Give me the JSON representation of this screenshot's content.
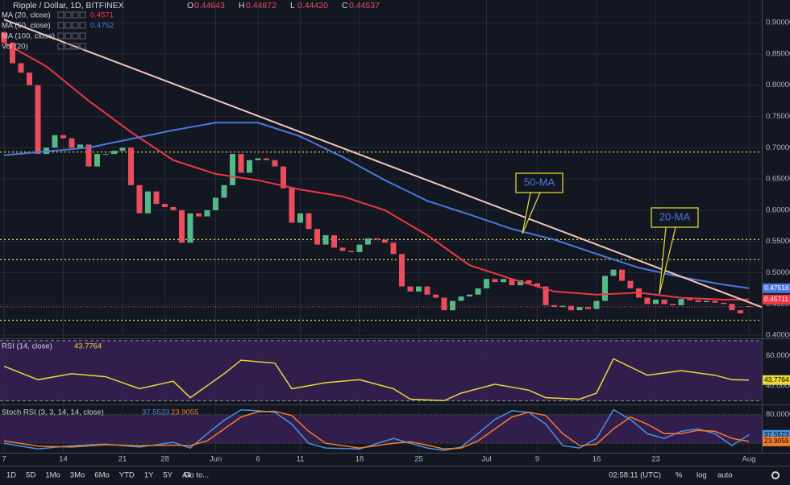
{
  "header": {
    "title": "Ripple / Dollar, 1D, BITFINEX",
    "ohlc": [
      {
        "key": "O",
        "value": "0.44643"
      },
      {
        "key": "H",
        "value": "0.44872"
      },
      {
        "key": "L",
        "value": "0.44420"
      },
      {
        "key": "C",
        "value": "0.44537"
      }
    ]
  },
  "indicators": [
    {
      "name": "MA (20, close)",
      "value": 0.4571,
      "color": "#f23645"
    },
    {
      "name": "MA (50, close)",
      "value": 0.4752,
      "color": "#4a78e0"
    },
    {
      "name": "MA (100, close)"
    },
    {
      "name": "Vol (20)"
    }
  ],
  "chart_data": [
    {
      "type": "candlestick",
      "categories": [
        "7",
        null,
        null,
        null,
        null,
        null,
        null,
        "14",
        null,
        null,
        null,
        null,
        null,
        null,
        "21",
        null,
        null,
        null,
        null,
        "28",
        null,
        null,
        null,
        null,
        null,
        "Jun",
        null,
        null,
        null,
        null,
        "6",
        null,
        null,
        null,
        null,
        "11",
        null,
        null,
        null,
        null,
        null,
        null,
        "18",
        null,
        null,
        null,
        null,
        null,
        null,
        "25",
        null,
        null,
        null,
        null,
        null,
        null,
        null,
        "Jul",
        null,
        null,
        null,
        null,
        null,
        "9",
        null,
        null,
        null,
        null,
        null,
        null,
        "16",
        null,
        null,
        null,
        null,
        null,
        null,
        "23",
        null,
        null,
        null,
        null,
        null,
        null,
        null,
        null,
        null,
        null,
        "Aug"
      ],
      "open": [
        0.885,
        0.868,
        0.835,
        0.82,
        0.8,
        0.69,
        0.7,
        0.72,
        0.715,
        0.7,
        0.705,
        0.67,
        0.69,
        0.69,
        0.695,
        0.7,
        0.64,
        0.595,
        0.63,
        0.61,
        0.605,
        0.6,
        0.548,
        0.595,
        0.59,
        0.6,
        0.62,
        0.64,
        0.69,
        0.66,
        0.68,
        0.683,
        0.68,
        0.67,
        0.635,
        0.58,
        0.595,
        0.57,
        0.545,
        0.56,
        0.54,
        0.535,
        0.533,
        0.545,
        0.555,
        0.553,
        0.548,
        0.53,
        0.478,
        0.47,
        0.478,
        0.465,
        0.46,
        0.44,
        0.455,
        0.462,
        0.465,
        0.475,
        0.49,
        0.485,
        0.49,
        0.48,
        0.488,
        0.483,
        0.478,
        0.448,
        0.445,
        0.447,
        0.44,
        0.445,
        0.442,
        0.455,
        0.495,
        0.505,
        0.487,
        0.475,
        0.46,
        0.45,
        0.457,
        0.45,
        0.448,
        0.458,
        0.456,
        0.453,
        0.455,
        0.452,
        0.45,
        0.44,
        0.44643
      ],
      "close": [
        0.868,
        0.835,
        0.82,
        0.8,
        0.69,
        0.7,
        0.72,
        0.715,
        0.7,
        0.705,
        0.67,
        0.69,
        0.69,
        0.695,
        0.7,
        0.64,
        0.595,
        0.63,
        0.61,
        0.605,
        0.6,
        0.548,
        0.595,
        0.59,
        0.6,
        0.62,
        0.64,
        0.69,
        0.66,
        0.68,
        0.683,
        0.68,
        0.67,
        0.635,
        0.58,
        0.595,
        0.57,
        0.545,
        0.56,
        0.54,
        0.535,
        0.533,
        0.545,
        0.555,
        0.553,
        0.548,
        0.53,
        0.478,
        0.47,
        0.478,
        0.465,
        0.46,
        0.44,
        0.455,
        0.462,
        0.465,
        0.475,
        0.49,
        0.485,
        0.49,
        0.48,
        0.488,
        0.483,
        0.478,
        0.448,
        0.445,
        0.447,
        0.44,
        0.445,
        0.442,
        0.455,
        0.495,
        0.505,
        0.487,
        0.475,
        0.46,
        0.45,
        0.457,
        0.45,
        0.448,
        0.458,
        0.456,
        0.453,
        0.455,
        0.452,
        0.45,
        0.44,
        0.435,
        0.44537
      ],
      "up_color": "#53b987",
      "down_color": "#eb4d5c",
      "ylim": [
        0.395,
        0.913
      ],
      "yticks": [
        {
          "value": 0.4,
          "label": "0.40000"
        },
        {
          "value": 0.45,
          "label": "0.45000"
        },
        {
          "value": 0.5,
          "label": "0.50000"
        },
        {
          "value": 0.55,
          "label": "0.55000"
        },
        {
          "value": 0.6,
          "label": "0.60000"
        },
        {
          "value": 0.65,
          "label": "0.65000"
        },
        {
          "value": 0.7,
          "label": "0.70000"
        },
        {
          "value": 0.75,
          "label": "0.75000"
        },
        {
          "value": 0.8,
          "label": "0.80000"
        },
        {
          "value": 0.85,
          "label": "0.85000"
        },
        {
          "value": 0.9,
          "label": "0.90000"
        }
      ],
      "grid": true,
      "lines": [
        {
          "color": "#f23645",
          "x": [
            0,
            5,
            10,
            15,
            20,
            25,
            30,
            35,
            40,
            45,
            50,
            55,
            60,
            65,
            70,
            75,
            80,
            85,
            88
          ],
          "values": [
            0.868,
            0.83,
            0.775,
            0.725,
            0.68,
            0.658,
            0.648,
            0.633,
            0.622,
            0.6,
            0.56,
            0.512,
            0.49,
            0.47,
            0.465,
            0.468,
            0.46,
            0.457,
            0.45711
          ]
        },
        {
          "color": "#4a78e0",
          "x": [
            0,
            10,
            20,
            25,
            30,
            35,
            40,
            45,
            50,
            55,
            60,
            65,
            70,
            75,
            80,
            85,
            88
          ],
          "values": [
            0.688,
            0.7,
            0.728,
            0.74,
            0.74,
            0.718,
            0.685,
            0.648,
            0.615,
            0.593,
            0.57,
            0.553,
            0.53,
            0.508,
            0.493,
            0.481,
            0.47516
          ]
        }
      ],
      "trendline": {
        "color": "#f4c7b8",
        "x": [
          0,
          89.5
        ],
        "values": [
          0.905,
          0.445
        ]
      },
      "levels": [
        0.693,
        0.553,
        0.521,
        0.424
      ],
      "level_color": "#e8e03a",
      "annotations": [
        "50-MA",
        "20-MA"
      ]
    },
    {
      "type": "line",
      "title": "RSI (14, close)",
      "series": [
        {
          "color": "#e8d83a",
          "x": [
            0,
            4,
            8,
            12,
            16,
            20,
            22,
            26,
            28,
            32,
            34,
            38,
            42,
            46,
            48,
            52,
            54,
            58,
            62,
            64,
            68,
            70,
            72,
            76,
            80,
            84,
            86,
            88
          ],
          "values": [
            53,
            44,
            48,
            46,
            38,
            43,
            32,
            48,
            57,
            55,
            38,
            42,
            44,
            38,
            31,
            30,
            35,
            41,
            37,
            32,
            31,
            35,
            58,
            47,
            50,
            47,
            44,
            43.7764
          ]
        }
      ],
      "ylim": [
        27.5,
        70.5
      ],
      "yticks": [
        {
          "value": 60,
          "label": "60.0000"
        },
        {
          "value": 40,
          "label": "40.0000"
        }
      ],
      "bands": [
        70,
        30
      ],
      "band_color": "#3b2058"
    },
    {
      "type": "line",
      "title": "Stoch RSI (3, 3, 14, 14, close)",
      "series": [
        {
          "color": "#4a90e2",
          "x": [
            0,
            4,
            8,
            12,
            16,
            20,
            22,
            24,
            26,
            28,
            30,
            32,
            34,
            36,
            38,
            42,
            46,
            48,
            50,
            52,
            54,
            56,
            58,
            60,
            62,
            64,
            66,
            68,
            70,
            72,
            74,
            76,
            78,
            80,
            82,
            84,
            86,
            88
          ],
          "values": [
            20,
            8,
            15,
            18,
            12,
            22,
            10,
            40,
            68,
            90,
            88,
            85,
            60,
            20,
            10,
            8,
            30,
            20,
            10,
            5,
            12,
            40,
            70,
            88,
            85,
            60,
            15,
            10,
            30,
            90,
            70,
            40,
            30,
            45,
            50,
            40,
            15,
            37.5523
          ]
        },
        {
          "color": "#f57c2c",
          "x": [
            0,
            4,
            8,
            12,
            16,
            20,
            22,
            24,
            26,
            28,
            30,
            32,
            34,
            36,
            38,
            42,
            46,
            48,
            50,
            52,
            54,
            56,
            58,
            60,
            62,
            64,
            66,
            68,
            70,
            72,
            74,
            76,
            78,
            80,
            82,
            84,
            86,
            88
          ],
          "values": [
            25,
            14,
            12,
            17,
            15,
            16,
            15,
            25,
            50,
            75,
            86,
            87,
            78,
            45,
            20,
            10,
            20,
            23,
            16,
            8,
            10,
            25,
            50,
            75,
            85,
            78,
            40,
            15,
            18,
            50,
            75,
            60,
            40,
            40,
            47,
            45,
            30,
            23.9055
          ]
        }
      ],
      "ylim": [
        0,
        98
      ],
      "yticks": [
        {
          "value": 80,
          "label": "80.0000"
        },
        {
          "value": 20,
          "label": "20.0000"
        }
      ],
      "bands": [
        80,
        20
      ],
      "band_color": "#3b2058"
    }
  ],
  "toolbar": {
    "ranges": [
      "1D",
      "5D",
      "1Mo",
      "3Mo",
      "6Mo",
      "YTD",
      "1Y",
      "5Y",
      "All"
    ],
    "goto": "Go to...",
    "time": "02:58:11 (UTC)",
    "options": [
      "%",
      "log",
      "auto"
    ]
  }
}
